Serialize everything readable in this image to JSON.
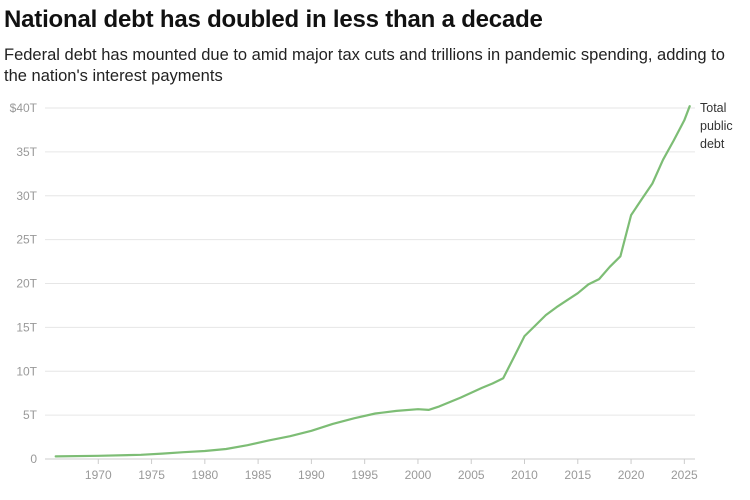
{
  "header": {
    "title": "National debt has doubled in less than a decade",
    "subtitle": "Federal debt has mounted due to amid major tax cuts and trillions in pandemic spending, adding to the nation's interest payments"
  },
  "colors": {
    "line": "#7dbd75",
    "grid": "#e6e6e6",
    "tick_text": "#999999",
    "baseline": "#cccccc"
  },
  "chart_data": {
    "type": "line",
    "title": "National debt has doubled in less than a decade",
    "subtitle": "Federal debt has mounted due to amid major tax cuts and trillions in pandemic spending, adding to the nation's interest payments",
    "xlabel": "",
    "ylabel": "",
    "xlim": [
      1965,
      2026
    ],
    "ylim": [
      0,
      40
    ],
    "grid": true,
    "y_ticks": [
      0,
      5,
      10,
      15,
      20,
      25,
      30,
      35,
      40
    ],
    "y_tick_labels": [
      "0",
      "5T",
      "10T",
      "15T",
      "20T",
      "25T",
      "30T",
      "35T",
      "$40T"
    ],
    "x_ticks": [
      1970,
      1975,
      1980,
      1985,
      1990,
      1995,
      2000,
      2005,
      2010,
      2015,
      2020,
      2025
    ],
    "x_tick_labels": [
      "1970",
      "1975",
      "1980",
      "1985",
      "1990",
      "1995",
      "2000",
      "2005",
      "2010",
      "2015",
      "2020",
      "2025"
    ],
    "series": [
      {
        "name": "Total public debt",
        "label_lines": [
          "Total",
          "public",
          "debt"
        ],
        "x": [
          1966,
          1970,
          1974,
          1976,
          1978,
          1980,
          1982,
          1984,
          1986,
          1988,
          1990,
          1992,
          1994,
          1996,
          1998,
          2000,
          2001,
          2002,
          2004,
          2006,
          2007,
          2008,
          2009,
          2010,
          2011,
          2012,
          2013,
          2014,
          2015,
          2016,
          2017,
          2018,
          2019,
          2020,
          2021,
          2022,
          2023,
          2024,
          2025,
          2025.5
        ],
        "values": [
          0.3,
          0.37,
          0.48,
          0.62,
          0.78,
          0.91,
          1.14,
          1.57,
          2.12,
          2.6,
          3.21,
          4.0,
          4.64,
          5.18,
          5.48,
          5.67,
          5.6,
          6.0,
          7.0,
          8.1,
          8.6,
          9.2,
          11.6,
          14.0,
          15.2,
          16.4,
          17.3,
          18.1,
          18.9,
          19.9,
          20.5,
          21.9,
          23.1,
          27.8,
          29.6,
          31.4,
          34.1,
          36.3,
          38.6,
          40.2
        ]
      }
    ]
  }
}
